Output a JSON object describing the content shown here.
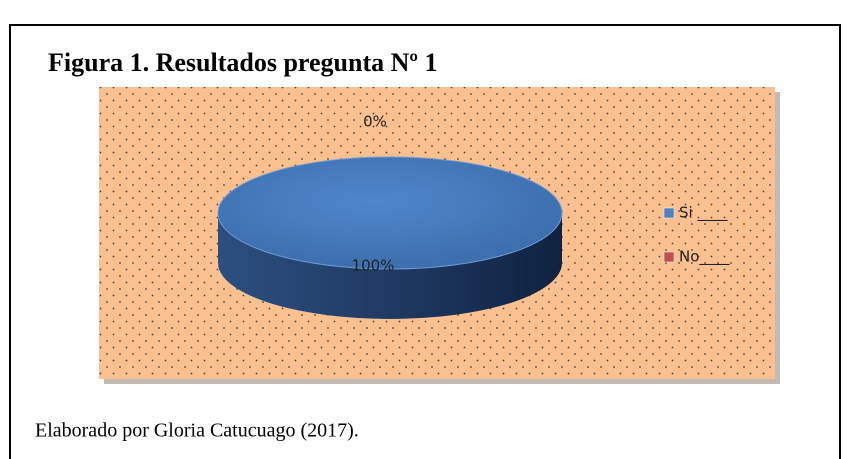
{
  "chart_data": {
    "type": "pie",
    "title": "Figura 1. Resultados pregunta Nº 1",
    "categories": [
      "Si ____",
      "No____"
    ],
    "values": [
      100,
      0
    ],
    "value_labels": [
      "100%",
      "0%"
    ],
    "colors": [
      "#4f81bd",
      "#c0504d"
    ],
    "legend": "right",
    "source": "Elaborado por Gloria Catucuago (2017)."
  }
}
